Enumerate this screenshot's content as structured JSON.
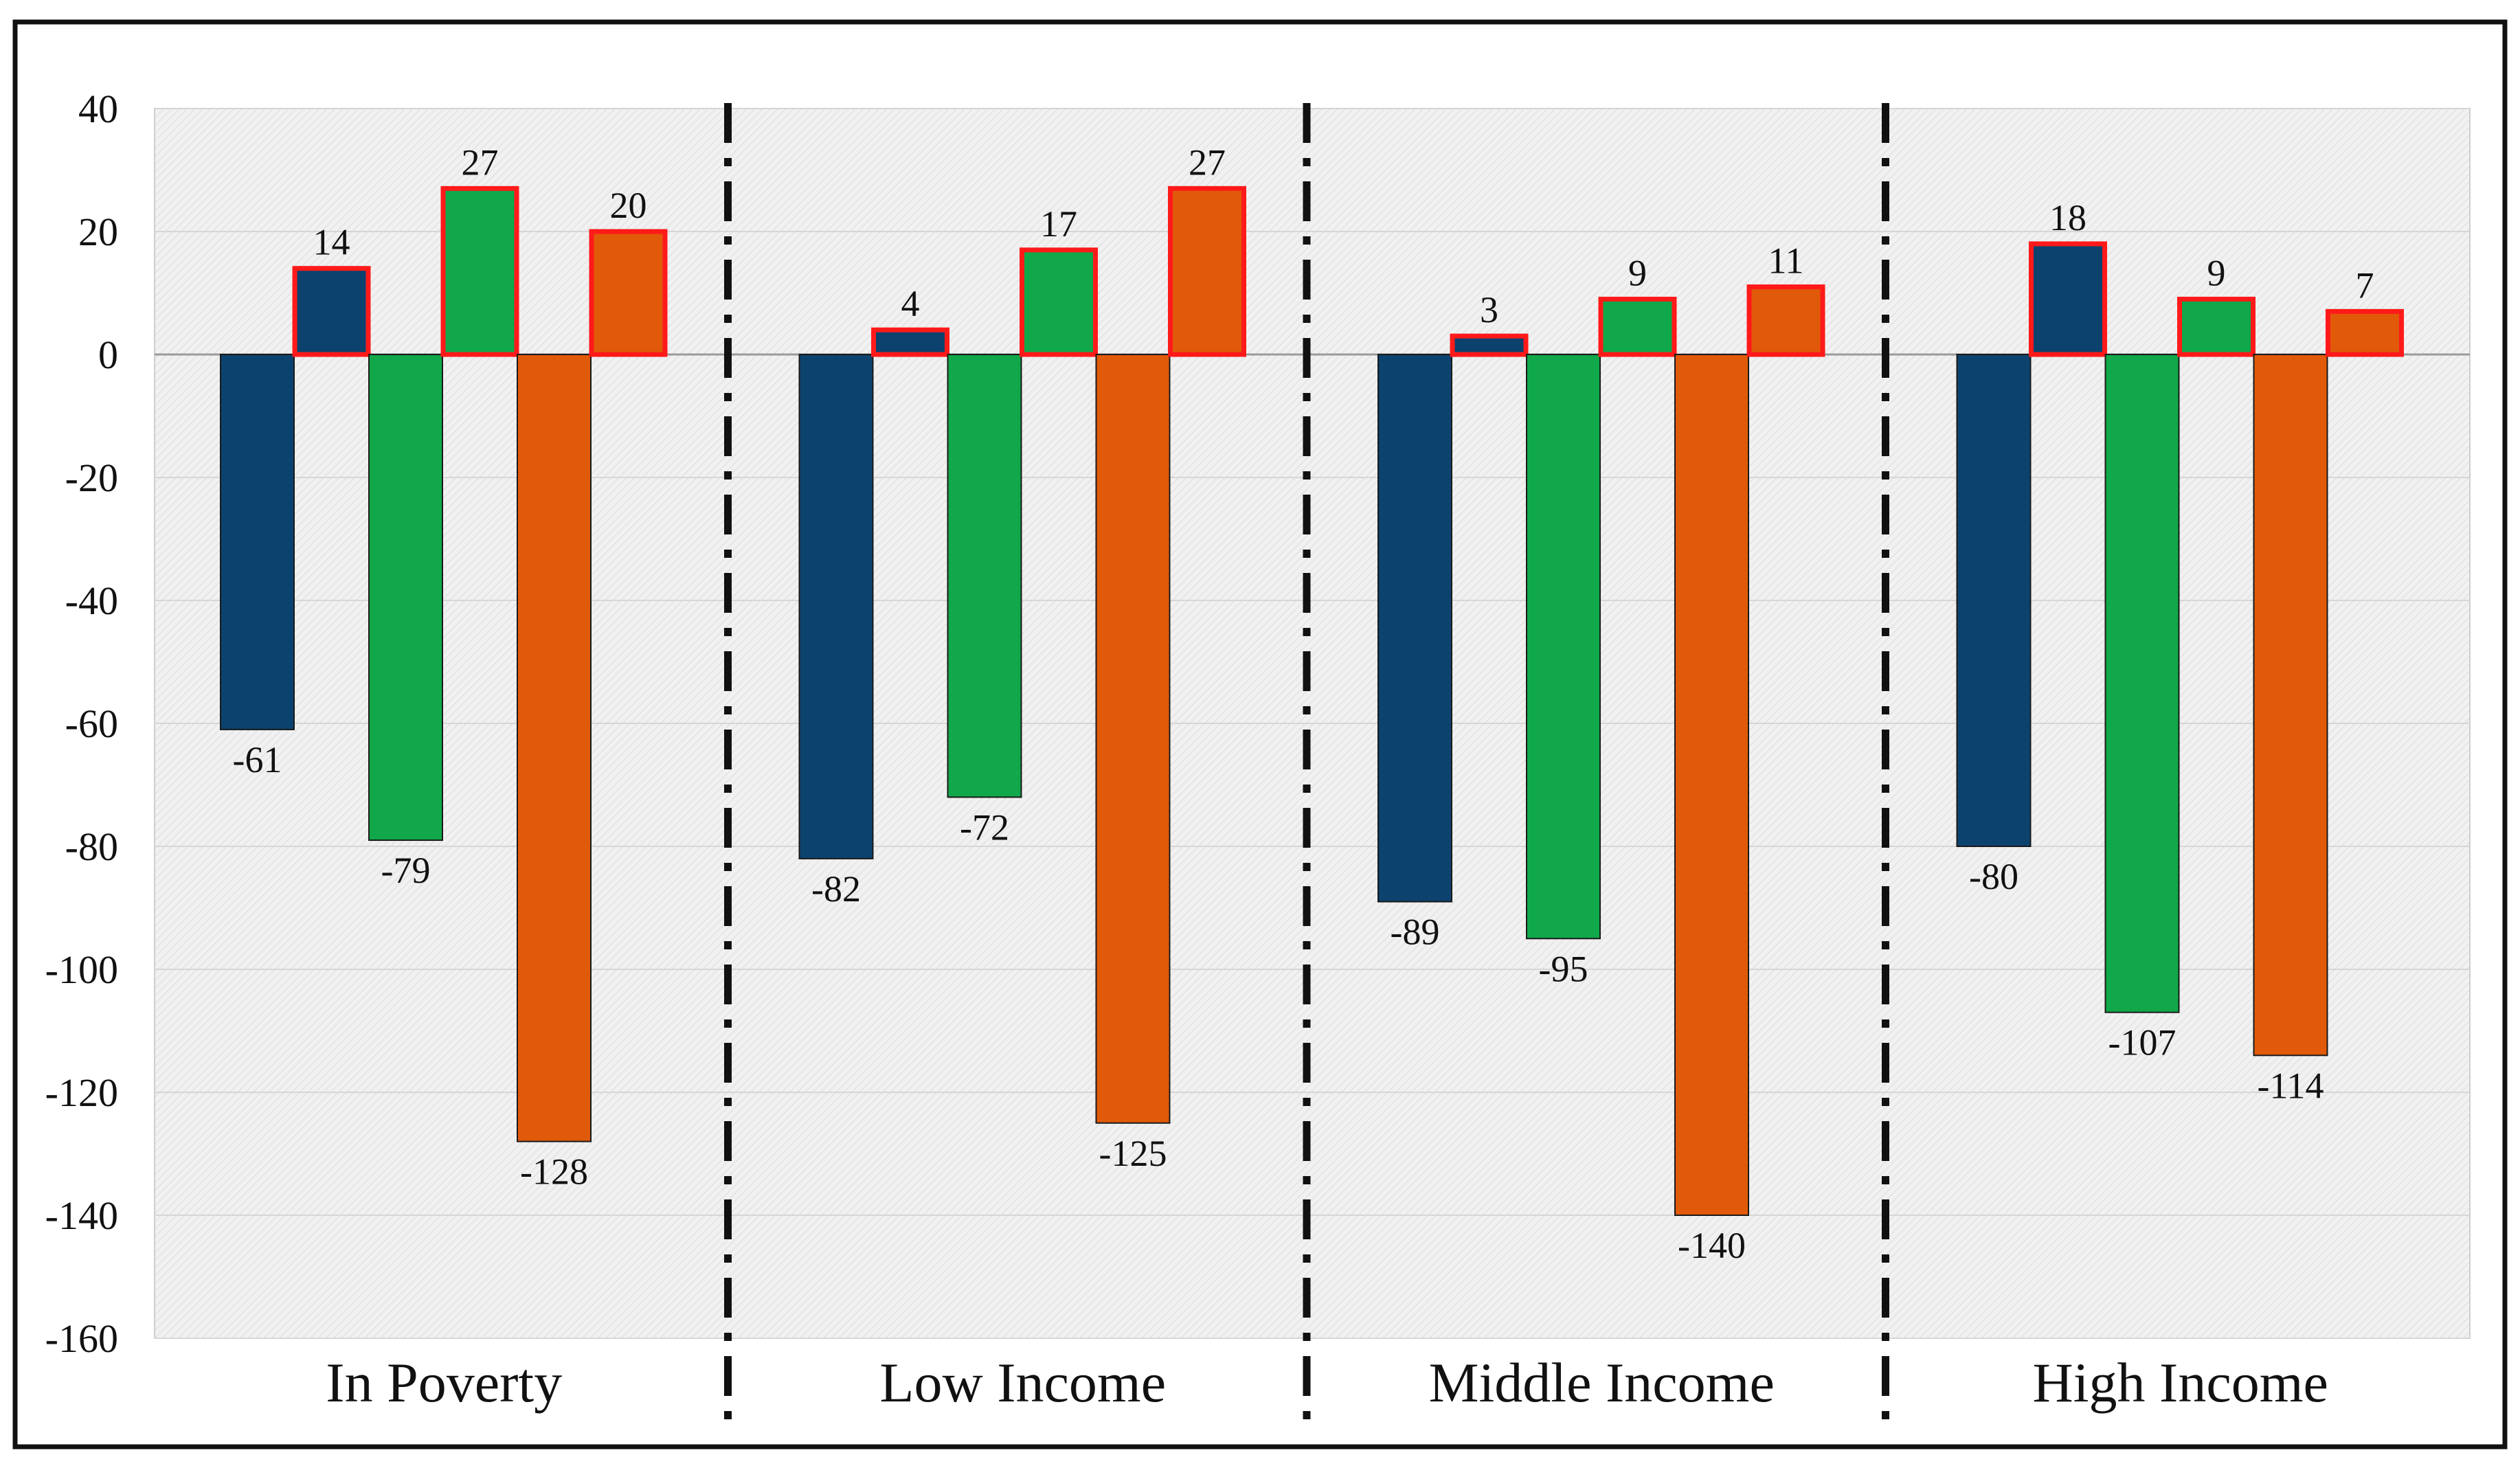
{
  "chart_data": {
    "type": "bar",
    "categories": [
      "In Poverty",
      "Low Income",
      "Middle Income",
      "High Income"
    ],
    "y_ticks": [
      "40",
      "20",
      "0",
      "-20",
      "-40",
      "-60",
      "-80",
      "-100",
      "-120",
      "-140",
      "-160"
    ],
    "ylim": [
      -160,
      40
    ],
    "grid": true,
    "series_colors": [
      "#0c426e",
      "#10a84a",
      "#e05a0a"
    ],
    "highlight_outline_color": "#ff1a1a",
    "groups": [
      {
        "name": "In Poverty",
        "bars": [
          {
            "series": 0,
            "value": -61,
            "label": "-61",
            "highlight": false
          },
          {
            "series": 0,
            "value": 14,
            "label": "14",
            "highlight": true
          },
          {
            "series": 1,
            "value": -79,
            "label": "-79",
            "highlight": false
          },
          {
            "series": 1,
            "value": 27,
            "label": "27",
            "highlight": true
          },
          {
            "series": 2,
            "value": -128,
            "label": "-128",
            "highlight": false
          },
          {
            "series": 2,
            "value": 20,
            "label": "20",
            "highlight": true
          }
        ]
      },
      {
        "name": "Low Income",
        "bars": [
          {
            "series": 0,
            "value": -82,
            "label": "-82",
            "highlight": false
          },
          {
            "series": 0,
            "value": 4,
            "label": "4",
            "highlight": true
          },
          {
            "series": 1,
            "value": -72,
            "label": "-72",
            "highlight": false
          },
          {
            "series": 1,
            "value": 17,
            "label": "17",
            "highlight": true
          },
          {
            "series": 2,
            "value": -125,
            "label": "-125",
            "highlight": false
          },
          {
            "series": 2,
            "value": 27,
            "label": "27",
            "highlight": true
          }
        ]
      },
      {
        "name": "Middle Income",
        "bars": [
          {
            "series": 0,
            "value": -89,
            "label": "-89",
            "highlight": false
          },
          {
            "series": 0,
            "value": 3,
            "label": "3",
            "highlight": true
          },
          {
            "series": 1,
            "value": -95,
            "label": "-95",
            "highlight": false
          },
          {
            "series": 1,
            "value": 9,
            "label": "9",
            "highlight": true
          },
          {
            "series": 2,
            "value": -140,
            "label": "-140",
            "highlight": false
          },
          {
            "series": 2,
            "value": 11,
            "label": "11",
            "highlight": true
          }
        ]
      },
      {
        "name": "High Income",
        "bars": [
          {
            "series": 0,
            "value": -80,
            "label": "-80",
            "highlight": false
          },
          {
            "series": 0,
            "value": 18,
            "label": "18",
            "highlight": true
          },
          {
            "series": 1,
            "value": -107,
            "label": "-107",
            "highlight": false
          },
          {
            "series": 1,
            "value": 9,
            "label": "9",
            "highlight": true
          },
          {
            "series": 2,
            "value": -114,
            "label": "-114",
            "highlight": false
          },
          {
            "series": 2,
            "value": 7,
            "label": "7",
            "highlight": true
          }
        ]
      }
    ]
  }
}
